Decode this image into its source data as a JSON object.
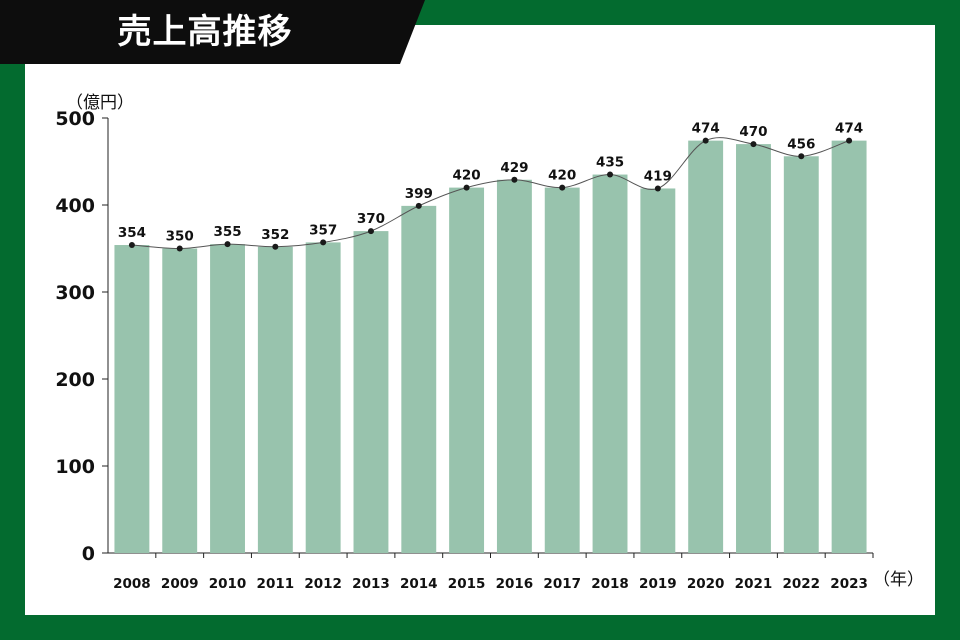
{
  "header": {
    "title": "売上高推移"
  },
  "units": {
    "y_unit": "（億円）",
    "x_unit": "（年）"
  },
  "colors": {
    "frame": "#036b2f",
    "bar": "#98c3ad",
    "line": "#555555",
    "marker": "#1a1a1a",
    "title_bg": "#0d0d0d"
  },
  "chart_data": {
    "type": "bar",
    "title": "売上高推移",
    "ylabel": "（億円）",
    "xlabel": "（年）",
    "ylim": [
      0,
      500
    ],
    "yticks": [
      0,
      100,
      200,
      300,
      400,
      500
    ],
    "grid": false,
    "categories": [
      "2008",
      "2009",
      "2010",
      "2011",
      "2012",
      "2013",
      "2014",
      "2015",
      "2016",
      "2017",
      "2018",
      "2019",
      "2020",
      "2021",
      "2022",
      "2023"
    ],
    "values": [
      354,
      350,
      355,
      352,
      357,
      370,
      399,
      420,
      429,
      420,
      435,
      419,
      474,
      470,
      456,
      474
    ],
    "overlay": "line-with-markers"
  }
}
